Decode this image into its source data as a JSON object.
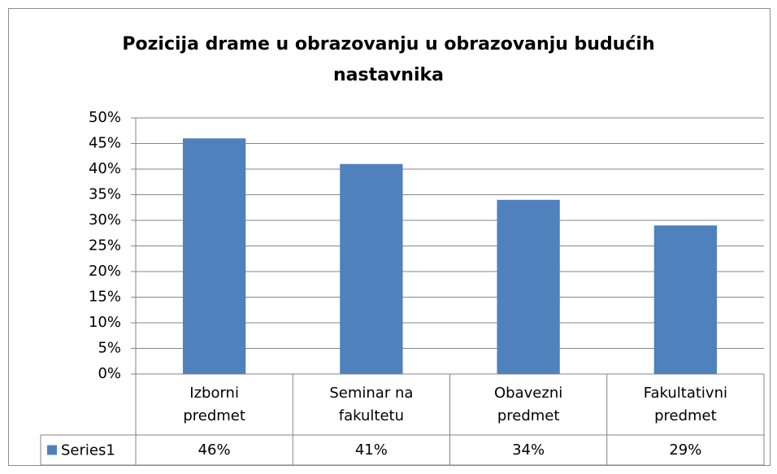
{
  "chart_data": {
    "type": "bar",
    "title": "Pozicija drame u obrazovanju u obrazovanju budućih nastavnika",
    "categories": [
      "Izborni predmet",
      "Seminar na fakultetu",
      "Obavezni predmet",
      "Fakultativni predmet"
    ],
    "series": [
      {
        "name": "Series1",
        "color": "#4f81bd",
        "values": [
          46,
          41,
          34,
          29
        ],
        "value_labels": [
          "46%",
          "41%",
          "34%",
          "29%"
        ]
      }
    ],
    "ylim": [
      0,
      50
    ],
    "yticks": [
      {
        "value": 0,
        "label": "0%"
      },
      {
        "value": 5,
        "label": "5%"
      },
      {
        "value": 10,
        "label": "10%"
      },
      {
        "value": 15,
        "label": "15%"
      },
      {
        "value": 20,
        "label": "20%"
      },
      {
        "value": 25,
        "label": "25%"
      },
      {
        "value": 30,
        "label": "30%"
      },
      {
        "value": 35,
        "label": "35%"
      },
      {
        "value": 40,
        "label": "40%"
      },
      {
        "value": 45,
        "label": "45%"
      },
      {
        "value": 50,
        "label": "50%"
      }
    ],
    "grid": true
  }
}
